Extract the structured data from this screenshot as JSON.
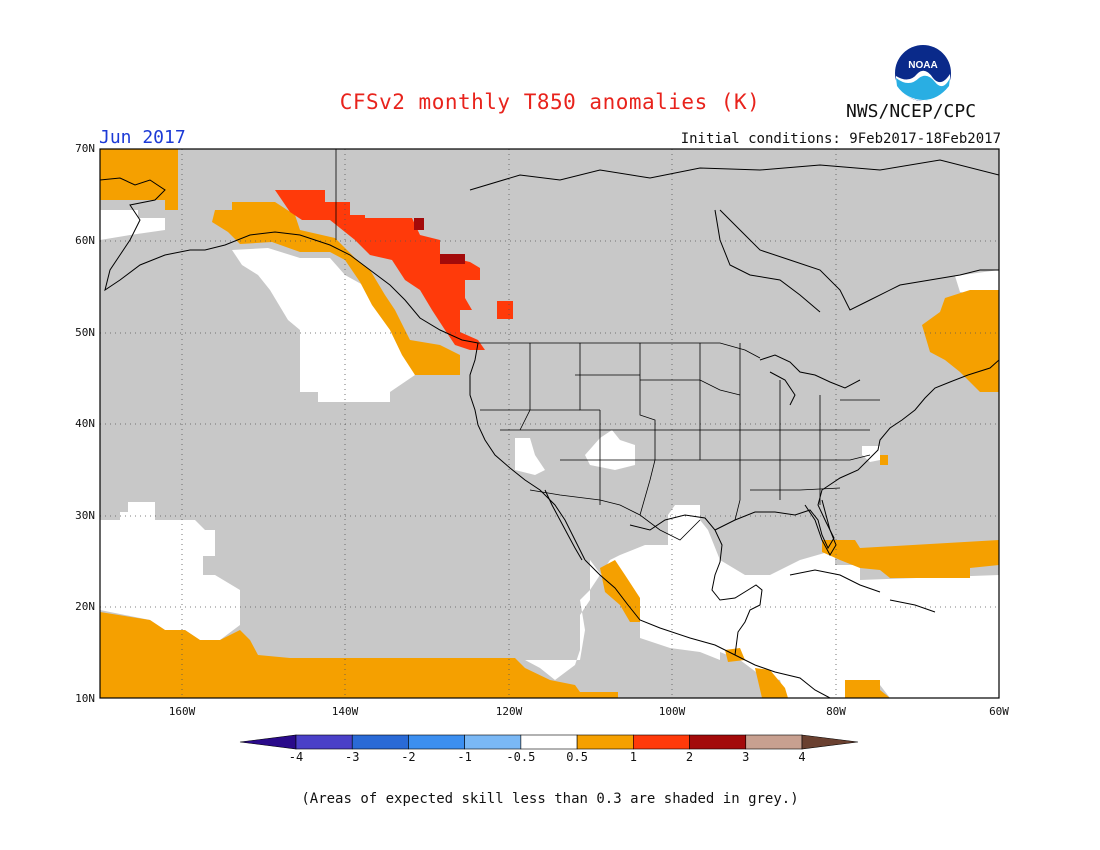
{
  "title": "CFSv2 monthly T850 anomalies (K)",
  "month": "Jun 2017",
  "agency": "NWS/NCEP/CPC",
  "initial_conditions": "Initial conditions: 9Feb2017-18Feb2017",
  "footnote": "(Areas of expected skill less than 0.3 are shaded in grey.)",
  "logo_text": "NOAA",
  "map": {
    "lon_range": [
      -170,
      -60
    ],
    "lat_range": [
      10,
      70
    ],
    "lat_ticks": [
      "10N",
      "20N",
      "30N",
      "40N",
      "50N",
      "60N",
      "70N"
    ],
    "lon_ticks": [
      "160W",
      "140W",
      "120W",
      "100W",
      "80W",
      "60W"
    ],
    "grey_shading": "skill less than 0.3",
    "colors": {
      "grey": "#c8c8c8",
      "neutral": "#ffffff",
      "0.5-1": "#f5a000",
      "1-2": "#ff3a0a",
      "2-3": "#a30a0a"
    }
  },
  "colorbar": {
    "tick_labels": [
      "-4",
      "-3",
      "-2",
      "-1",
      "-0.5",
      "0.5",
      "1",
      "2",
      "3",
      "4"
    ],
    "colors": [
      "#2a0a8a",
      "#4a40c8",
      "#2a6ad6",
      "#3c8ff0",
      "#7ab8f5",
      "#ffffff",
      "#f5a000",
      "#ff3a0a",
      "#a30a0a",
      "#c8a090",
      "#6a4030"
    ]
  }
}
